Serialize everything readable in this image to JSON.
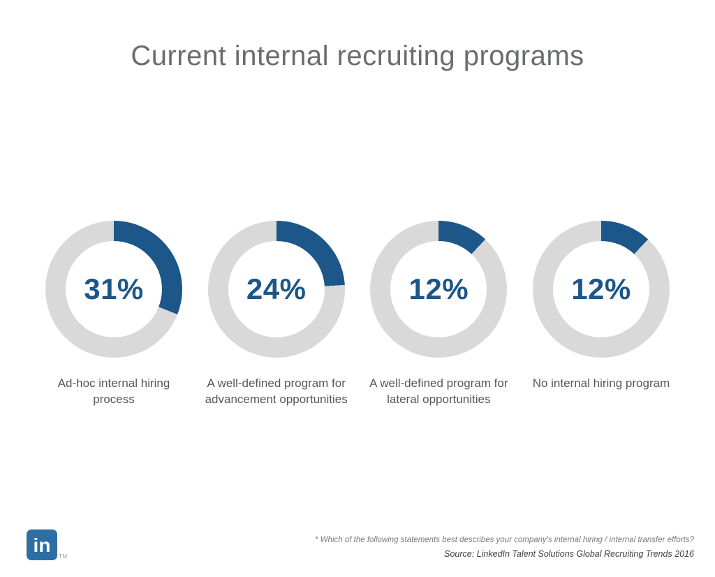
{
  "title": "Current internal recruiting programs",
  "chart_data": {
    "type": "donut",
    "title": "Current internal recruiting programs",
    "categories": [
      "Ad-hoc internal hiring process",
      "A well-defined program for advancement opportunities",
      "A well-defined program for lateral opportunities",
      "No internal hiring program"
    ],
    "values": [
      31,
      24,
      12,
      12
    ],
    "series": [
      {
        "label": "Ad-hoc internal hiring process",
        "value": 31,
        "display": "31%"
      },
      {
        "label": "A well-defined program for advancement opportunities",
        "value": 24,
        "display": "24%"
      },
      {
        "label": "A well-defined program for lateral opportunities",
        "value": 12,
        "display": "12%"
      },
      {
        "label": "No internal hiring program",
        "value": 12,
        "display": "12%"
      }
    ],
    "colors": {
      "fill": "#1d5688",
      "track": "#d9d9d9",
      "value_text": "#1d5688"
    },
    "start_angle_deg": 0,
    "direction": "clockwise"
  },
  "logo": {
    "text": "in",
    "trademark": "TM",
    "color": "#2d6ea5"
  },
  "footer": {
    "footnote": "* Which of the following statements best describes your company's internal hiring / internal transfer efforts?",
    "source": "Source: LinkedIn Talent Solutions Global Recruiting Trends 2016"
  }
}
